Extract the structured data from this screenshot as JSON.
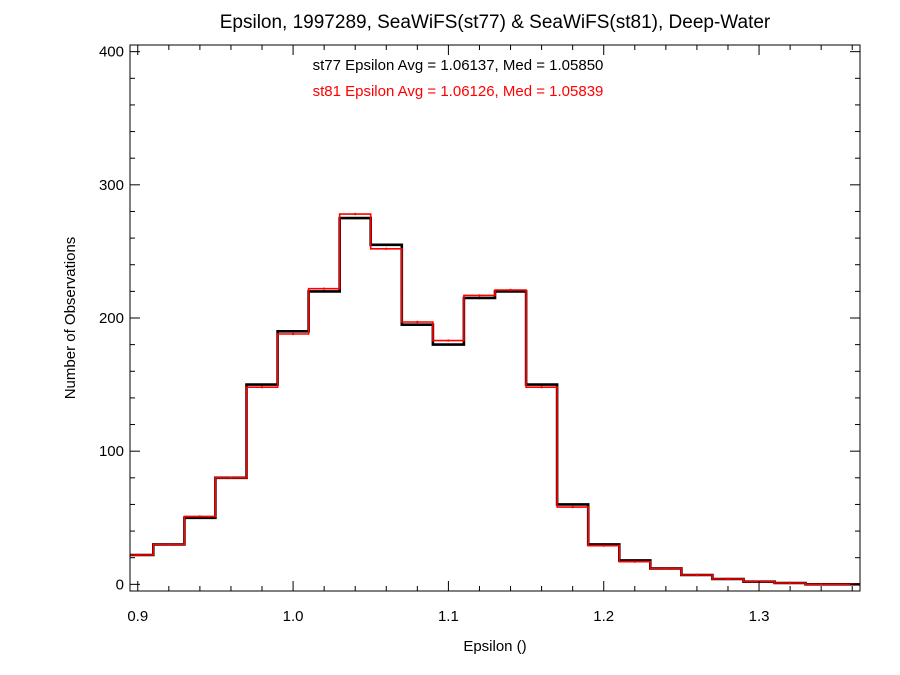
{
  "chart_data": {
    "type": "line",
    "title": "Epsilon, 1997289, SeaWiFS(st77) & SeaWiFS(st81), Deep-Water",
    "xlabel": "Epsilon ()",
    "ylabel": "Number of Observations",
    "xlim": [
      0.895,
      1.365
    ],
    "ylim": [
      -5,
      405
    ],
    "x_ticks": [
      0.9,
      1.0,
      1.1,
      1.2,
      1.3
    ],
    "x_tick_labels": [
      "0.9",
      "1.0",
      "1.1",
      "1.2",
      "1.3"
    ],
    "y_ticks": [
      0,
      100,
      200,
      300,
      400
    ],
    "y_tick_labels": [
      "0",
      "100",
      "200",
      "300",
      "400"
    ],
    "grid": false,
    "annotations": [
      {
        "text": "st77 Epsilon Avg = 1.06137, Med = 1.05850",
        "color": "#000000"
      },
      {
        "text": "st81 Epsilon Avg = 1.06126, Med = 1.05839",
        "color": "#ff0000"
      }
    ],
    "x": [
      0.9,
      0.92,
      0.94,
      0.96,
      0.98,
      1.0,
      1.02,
      1.04,
      1.06,
      1.08,
      1.1,
      1.12,
      1.14,
      1.16,
      1.18,
      1.2,
      1.22,
      1.24,
      1.26,
      1.28,
      1.3,
      1.32,
      1.34,
      1.36
    ],
    "series": [
      {
        "values": [
          22,
          30,
          50,
          80,
          150,
          190,
          220,
          275,
          255,
          195,
          180,
          215,
          220,
          150,
          60,
          30,
          18,
          12,
          7,
          4,
          2,
          1,
          0,
          0
        ],
        "color": "#000000"
      },
      {
        "values": [
          22,
          30,
          51,
          80,
          148,
          188,
          222,
          278,
          252,
          197,
          183,
          217,
          221,
          148,
          58,
          29,
          17,
          12,
          7,
          4,
          2,
          1,
          0,
          0
        ],
        "color": "#ff0000"
      }
    ]
  }
}
